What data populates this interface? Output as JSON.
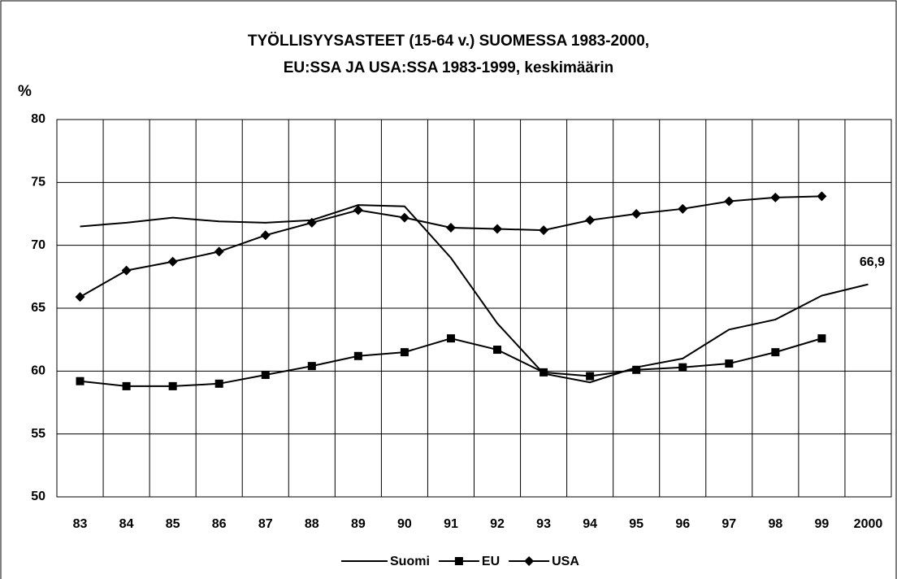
{
  "chart_data": {
    "type": "line",
    "title": [
      "TYÖLLISYYSASTEET (15-64 v.) SUOMESSA 1983-2000,",
      "EU:SSA JA USA:SSA 1983-1999, keskimäärin"
    ],
    "y_label": "%",
    "categories": [
      "83",
      "84",
      "85",
      "86",
      "87",
      "88",
      "89",
      "90",
      "91",
      "92",
      "93",
      "94",
      "95",
      "96",
      "97",
      "98",
      "99",
      "2000"
    ],
    "series": [
      {
        "name": "Suomi",
        "color": "#000000",
        "marker": "none",
        "values": [
          71.5,
          71.8,
          72.2,
          71.9,
          71.8,
          72.0,
          73.2,
          73.1,
          69.0,
          63.8,
          59.8,
          59.1,
          60.3,
          61.0,
          63.3,
          64.1,
          66.0,
          66.9
        ],
        "value_labels": [
          null,
          null,
          null,
          null,
          null,
          null,
          null,
          null,
          null,
          null,
          null,
          null,
          null,
          null,
          null,
          null,
          null,
          "66,9"
        ]
      },
      {
        "name": "EU",
        "color": "#000000",
        "marker": "square",
        "values": [
          59.2,
          58.8,
          58.8,
          59.0,
          59.7,
          60.4,
          61.2,
          61.5,
          62.6,
          61.7,
          59.9,
          59.6,
          60.1,
          60.3,
          60.6,
          61.5,
          62.6,
          null
        ]
      },
      {
        "name": "USA",
        "color": "#000000",
        "marker": "diamond",
        "values": [
          65.9,
          68.0,
          68.7,
          69.5,
          70.8,
          71.8,
          72.8,
          72.2,
          71.4,
          71.3,
          71.2,
          72.0,
          72.5,
          72.9,
          73.5,
          73.8,
          73.9,
          null
        ]
      }
    ],
    "ylim": [
      50,
      80
    ],
    "yticks": [
      50,
      55,
      60,
      65,
      70,
      75,
      80
    ],
    "grid": true,
    "legend": "bottom"
  }
}
